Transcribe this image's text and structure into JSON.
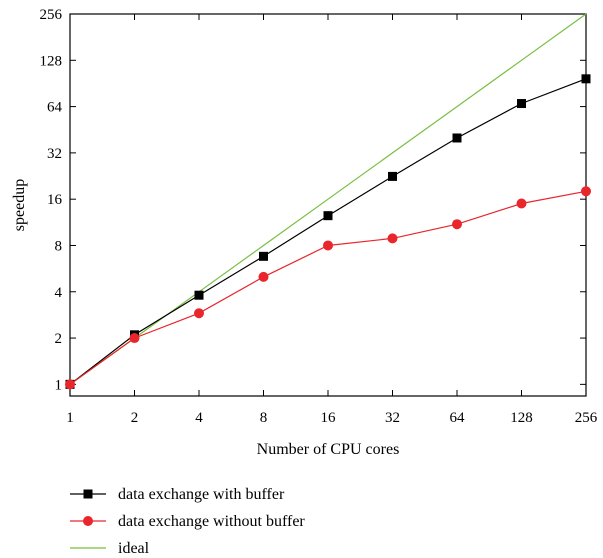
{
  "chart_data": {
    "type": "line",
    "xlabel": "Number of CPU cores",
    "ylabel": "speedup",
    "x_scale": "log2",
    "y_scale": "log2",
    "xlim": [
      1,
      256
    ],
    "ylim": [
      0.84,
      256
    ],
    "grid": false,
    "legend_position": "bottom-left, below plot",
    "x": [
      1,
      2,
      4,
      8,
      16,
      32,
      64,
      128,
      256
    ],
    "x_ticks": [
      "1",
      "2",
      "4",
      "8",
      "16",
      "32",
      "64",
      "128",
      "256"
    ],
    "y_tick_values": [
      1,
      2,
      4,
      8,
      16,
      32,
      64,
      128,
      256
    ],
    "y_ticks": [
      "1",
      "2",
      "4",
      "8",
      "16",
      "32",
      "64",
      "128",
      "256"
    ],
    "series": [
      {
        "name": "data exchange with buffer",
        "color": "#000000",
        "marker": "square",
        "values": [
          1,
          2.1,
          3.8,
          6.8,
          12.5,
          22.5,
          40,
          67,
          97
        ]
      },
      {
        "name": "data exchange without buffer",
        "color": "#e8262b",
        "marker": "circle",
        "values": [
          1,
          2,
          2.9,
          5,
          8,
          8.9,
          11,
          15,
          18
        ]
      },
      {
        "name": "ideal",
        "color": "#77bf3f",
        "marker": "none",
        "values": [
          1,
          2,
          4,
          8,
          16,
          32,
          64,
          128,
          256
        ]
      }
    ]
  }
}
